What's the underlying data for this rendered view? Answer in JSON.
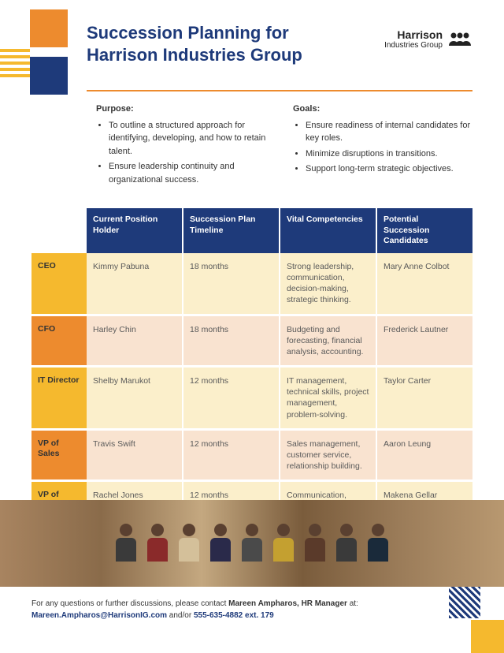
{
  "title": "Succession Planning for Harrison Industries Group",
  "logo": {
    "main": "Harrison",
    "sub": "Industries Group"
  },
  "purpose": {
    "heading": "Purpose:",
    "items": [
      "To outline a structured approach for identifying, developing, and how to retain talent.",
      "Ensure leadership continuity and organizational success."
    ]
  },
  "goals": {
    "heading": "Goals:",
    "items": [
      "Ensure readiness of internal candidates for key roles.",
      "Minimize disruptions in transitions.",
      "Support long-term strategic objectives."
    ]
  },
  "table": {
    "headers": [
      "Current Position Holder",
      "Succession Plan Timeline",
      "Vital Competencies",
      "Potential Succession Candidates"
    ],
    "rows": [
      {
        "role": "CEO",
        "color": "yellow",
        "holder": "Kimmy Pabuna",
        "timeline": "18 months",
        "comp": "Strong leadership, communication, decision-making, strategic thinking.",
        "cand": "Mary Anne Colbot"
      },
      {
        "role": "CFO",
        "color": "orange",
        "holder": "Harley Chin",
        "timeline": "18 months",
        "comp": "Budgeting and forecasting, financial analysis, accounting.",
        "cand": "Frederick Lautner"
      },
      {
        "role": "IT Director",
        "color": "yellow",
        "holder": "Shelby Marukot",
        "timeline": "12 months",
        "comp": "IT management, technical skills, project management, problem-solving.",
        "cand": "Taylor Carter"
      },
      {
        "role": "VP of Sales",
        "color": "orange",
        "holder": "Travis Swift",
        "timeline": "12 months",
        "comp": "Sales management, customer service, relationship building.",
        "cand": "Aaron Leung"
      },
      {
        "role": "VP of Marketing",
        "color": "yellow",
        "holder": "Rachel Jones",
        "timeline": "12 months",
        "comp": "Communication, problem-solving, strategic thinking.",
        "cand": "Makena Gellar"
      }
    ]
  },
  "footer": {
    "line1_pre": "For any questions or further discussions, please contact ",
    "contact_name": "Mareen Ampharos, HR Manager",
    "line1_post": " at:",
    "email": "Mareen.Ampharos@HarrisonIG.com",
    "mid": " and/or ",
    "phone": "555-635-4882 ext. 179"
  },
  "colors": {
    "yellow": "#f5b92e",
    "orange": "#ed8b2e",
    "blue": "#1e3a7a"
  }
}
